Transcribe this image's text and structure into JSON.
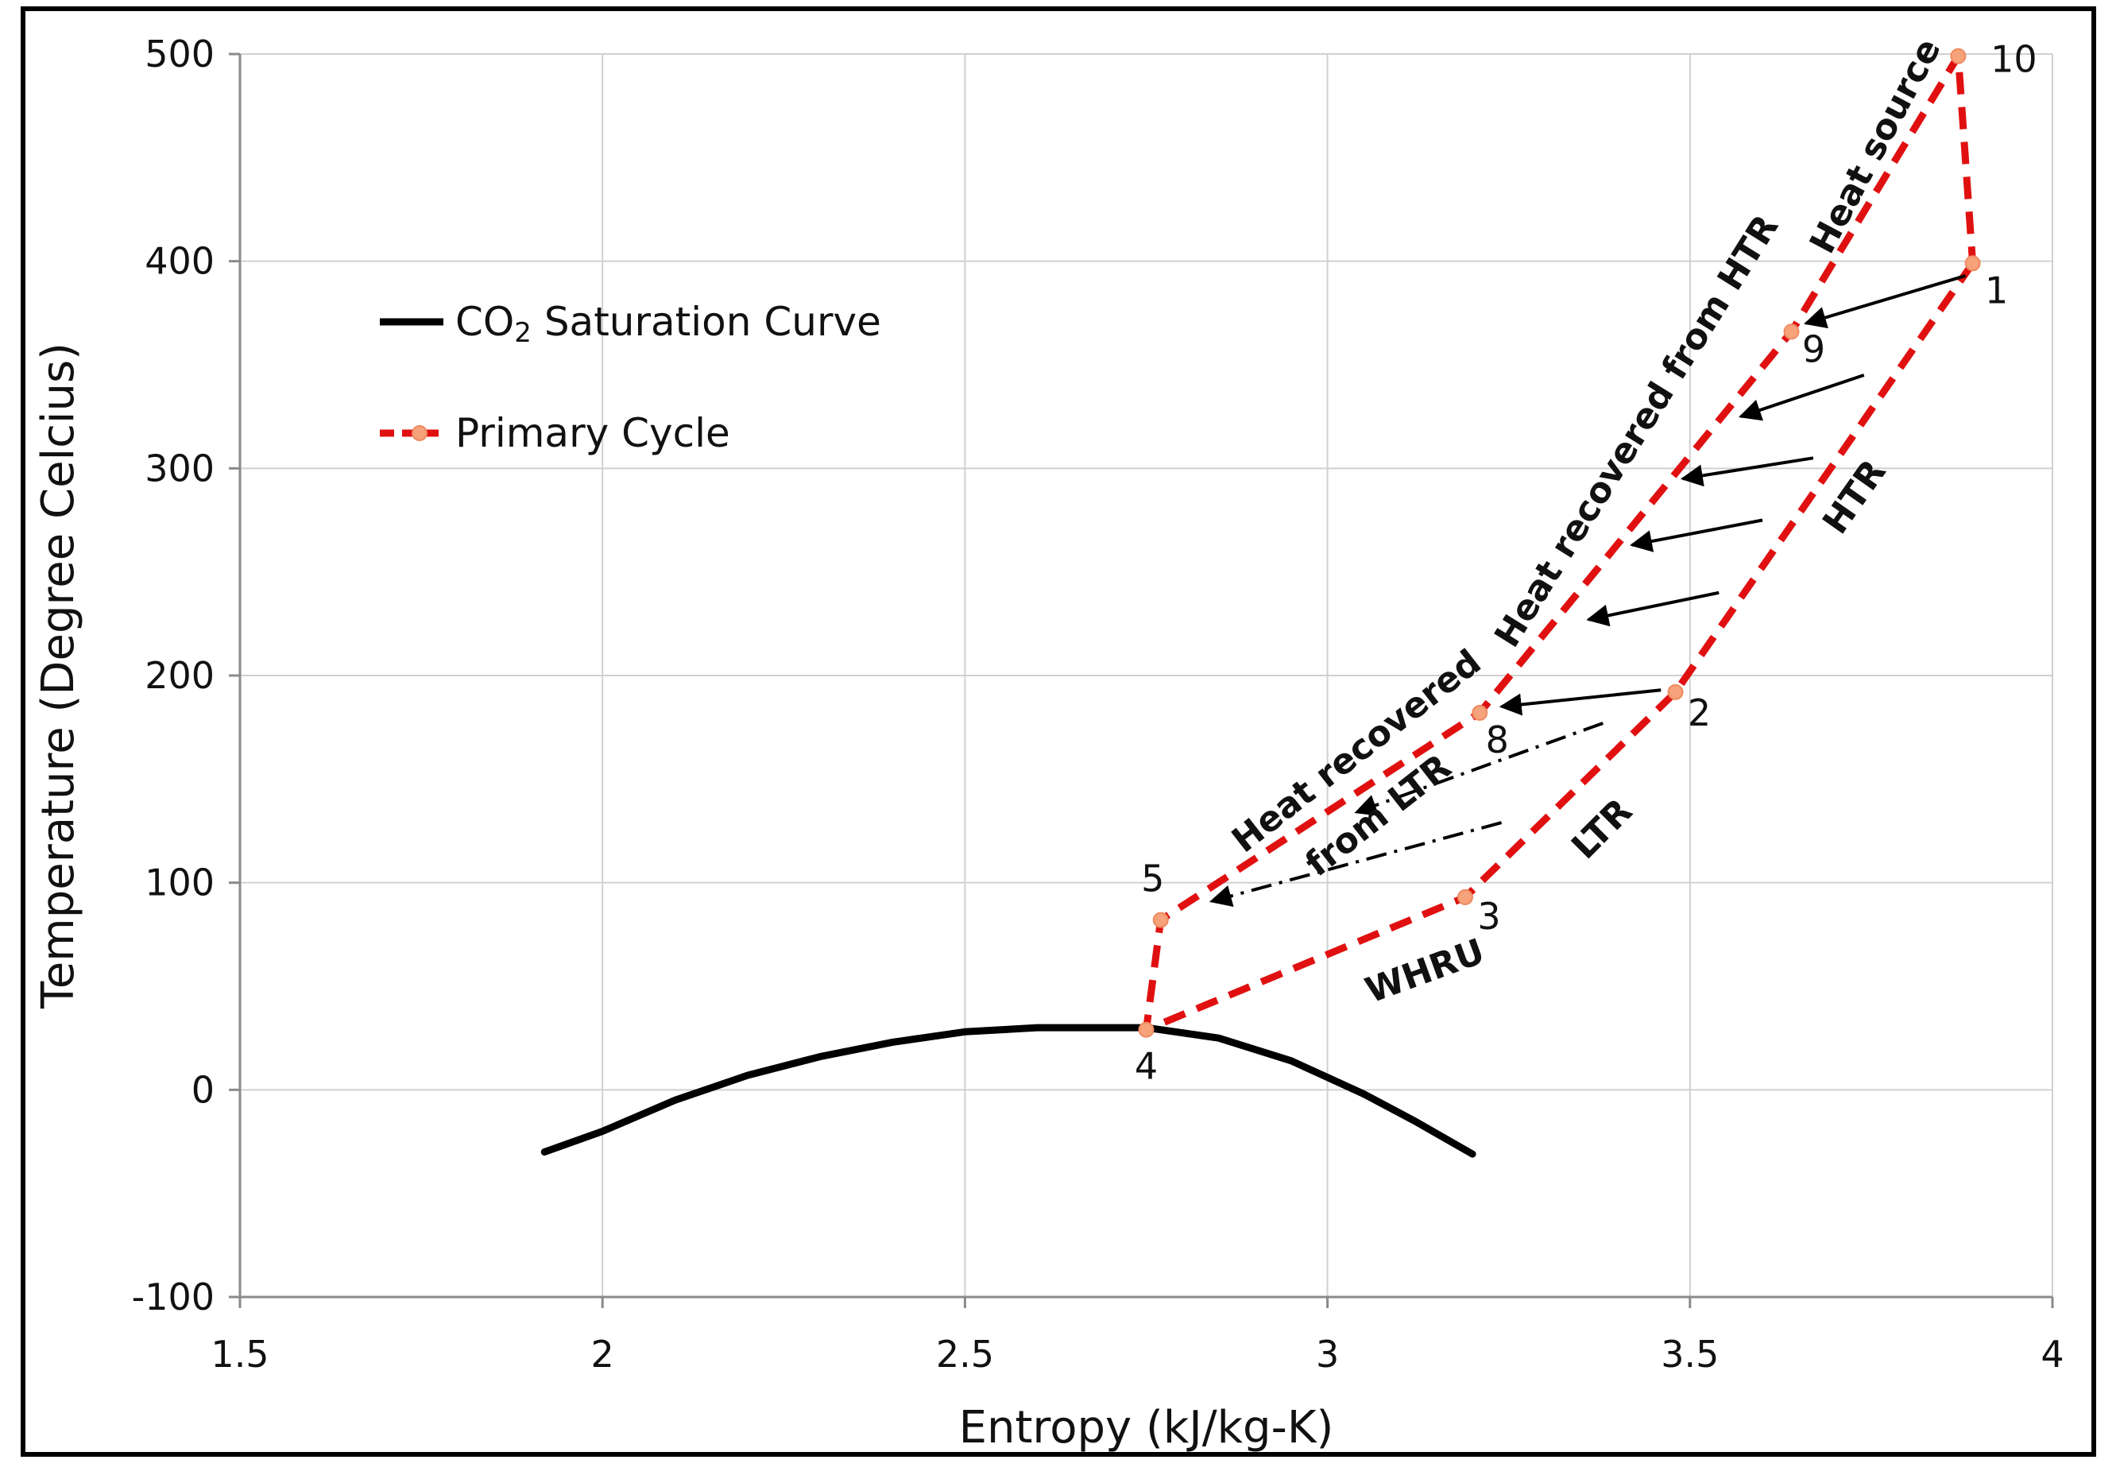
{
  "chart_data": {
    "type": "line",
    "xlabel": "Entropy (kJ/kg-K)",
    "ylabel": "Temperature (Degree Celcius)",
    "xlim": [
      1.5,
      4
    ],
    "ylim": [
      -100,
      500
    ],
    "xticks": [
      "1.5",
      "2",
      "2.5",
      "3",
      "3.5",
      "4"
    ],
    "yticks": [
      "-100",
      "0",
      "100",
      "200",
      "300",
      "400",
      "500"
    ],
    "xtick_values": [
      1.5,
      2,
      2.5,
      3,
      3.5,
      4
    ],
    "ytick_values": [
      -100,
      0,
      100,
      200,
      300,
      400,
      500
    ],
    "grid": true,
    "legend": {
      "position": "upper-left",
      "entries": [
        {
          "series": "saturation",
          "text_main": "CO",
          "text_sub": "2",
          "text_rest": " Saturation Curve"
        },
        {
          "series": "primary",
          "text_main": "Primary Cycle",
          "text_sub": "",
          "text_rest": ""
        }
      ]
    },
    "series": [
      {
        "id": "saturation",
        "name": "CO2 Saturation Curve",
        "color": "#000000",
        "style": "solid",
        "x": [
          1.92,
          2.0,
          2.1,
          2.2,
          2.3,
          2.4,
          2.5,
          2.6,
          2.75,
          2.85,
          2.95,
          3.05,
          3.12,
          3.2
        ],
        "y": [
          -30,
          -20,
          -5,
          7,
          16,
          23,
          28,
          30,
          30,
          25,
          14,
          -2,
          -15,
          -31
        ]
      },
      {
        "id": "primary",
        "name": "Primary Cycle",
        "color": "#e01010",
        "marker_color": "#f6a27a",
        "style": "dashed",
        "x": [
          3.89,
          3.48,
          3.19,
          2.75,
          2.77,
          3.21,
          3.64,
          3.87,
          3.89
        ],
        "y": [
          399,
          192,
          93,
          29,
          82,
          182,
          366,
          499,
          399
        ]
      }
    ],
    "points": [
      {
        "label": "1",
        "x": 3.89,
        "y": 399,
        "dx": 30,
        "dy": 50
      },
      {
        "label": "2",
        "x": 3.48,
        "y": 192,
        "dx": 30,
        "dy": 42
      },
      {
        "label": "3",
        "x": 3.19,
        "y": 93,
        "dx": 30,
        "dy": 40
      },
      {
        "label": "4",
        "x": 2.75,
        "y": 29,
        "dx": 0,
        "dy": 62
      },
      {
        "label": "5",
        "x": 2.77,
        "y": 82,
        "dx": -10,
        "dy": -36
      },
      {
        "label": "8",
        "x": 3.21,
        "y": 182,
        "dx": 22,
        "dy": 50
      },
      {
        "label": "9",
        "x": 3.64,
        "y": 366,
        "dx": 28,
        "dy": 38
      },
      {
        "label": "10",
        "x": 3.87,
        "y": 499,
        "dx": 70,
        "dy": 20
      }
    ],
    "arrows": [
      {
        "style": "solid",
        "from": [
          3.88,
          393
        ],
        "to": [
          3.66,
          370
        ]
      },
      {
        "style": "solid",
        "from": [
          3.74,
          345
        ],
        "to": [
          3.57,
          325
        ]
      },
      {
        "style": "solid",
        "from": [
          3.67,
          305
        ],
        "to": [
          3.49,
          295
        ]
      },
      {
        "style": "solid",
        "from": [
          3.6,
          275
        ],
        "to": [
          3.42,
          263
        ]
      },
      {
        "style": "solid",
        "from": [
          3.54,
          240
        ],
        "to": [
          3.36,
          227
        ]
      },
      {
        "style": "solid",
        "from": [
          3.46,
          193
        ],
        "to": [
          3.24,
          185
        ]
      },
      {
        "style": "dashdot",
        "from": [
          3.38,
          177
        ],
        "to": [
          3.04,
          134
        ]
      },
      {
        "style": "dashdot",
        "from": [
          3.24,
          129
        ],
        "to": [
          2.84,
          91
        ]
      }
    ],
    "annotations": [
      {
        "text": "Heat source",
        "x": 3.77,
        "y": 453,
        "angle": -62
      },
      {
        "text": "Heat recovered from HTR",
        "x": 3.44,
        "y": 315,
        "angle": -58
      },
      {
        "text": "HTR",
        "x": 3.74,
        "y": 283,
        "angle": -55
      },
      {
        "text": "Heat recovered",
        "x": 3.05,
        "y": 159,
        "angle": -38
      },
      {
        "text": "from LTR",
        "x": 3.08,
        "y": 128,
        "angle": -38
      },
      {
        "text": "LTR",
        "x": 3.39,
        "y": 122,
        "angle": -45
      },
      {
        "text": "WHRU",
        "x": 3.14,
        "y": 52,
        "angle": -20
      }
    ]
  }
}
